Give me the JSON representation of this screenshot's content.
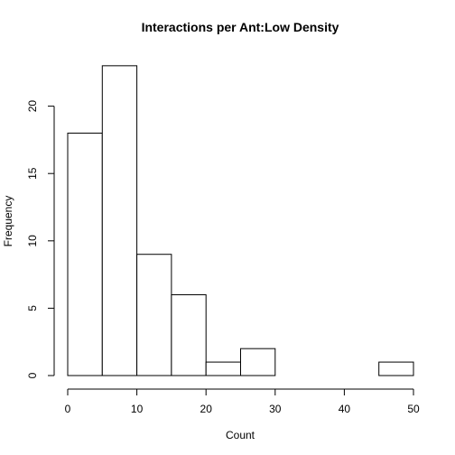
{
  "chart_data": {
    "type": "bar",
    "title": "Interactions per Ant:Low Density",
    "xlabel": "Count",
    "ylabel": "Frequency",
    "bins": [
      {
        "start": 0,
        "end": 5,
        "count": 18
      },
      {
        "start": 5,
        "end": 10,
        "count": 23
      },
      {
        "start": 10,
        "end": 15,
        "count": 9
      },
      {
        "start": 15,
        "end": 20,
        "count": 6
      },
      {
        "start": 20,
        "end": 25,
        "count": 1
      },
      {
        "start": 25,
        "end": 30,
        "count": 2
      },
      {
        "start": 30,
        "end": 35,
        "count": 0
      },
      {
        "start": 35,
        "end": 40,
        "count": 0
      },
      {
        "start": 40,
        "end": 45,
        "count": 0
      },
      {
        "start": 45,
        "end": 50,
        "count": 1
      }
    ],
    "xlim": [
      0,
      50
    ],
    "ylim": [
      0,
      23
    ],
    "x_ticks": [
      "0",
      "10",
      "20",
      "30",
      "40",
      "50"
    ],
    "y_ticks": [
      "0",
      "5",
      "10",
      "15",
      "20"
    ],
    "grid": false,
    "legend": "none"
  }
}
